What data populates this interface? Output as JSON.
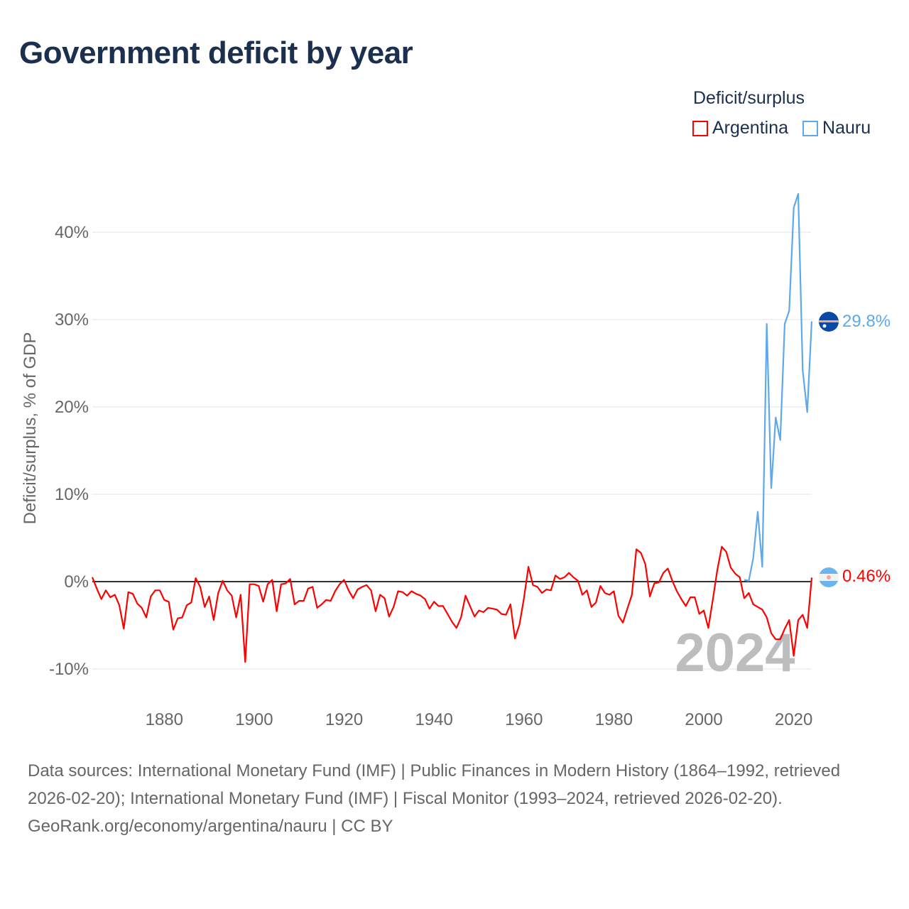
{
  "title": "Government deficit by year",
  "legend": {
    "title": "Deficit/surplus",
    "items": [
      {
        "label": "Argentina",
        "color": "#ff0000"
      },
      {
        "label": "Nauru",
        "color": "#5ea8ec"
      }
    ]
  },
  "year_watermark": "2024",
  "end_labels": {
    "argentina": "0.46%",
    "nauru": "29.8%"
  },
  "footer": {
    "sources": "Data sources: International Monetary Fund (IMF) | Public Finances in Modern History (1864–1992, retrieved 2026-02-20); International Monetary Fund (IMF) | Fiscal Monitor (1993–2024, retrieved 2026-02-20).",
    "attribution": "GeoRank.org/economy/argentina/nauru | CC BY"
  },
  "chart_data": {
    "type": "line",
    "title": "Government deficit by year",
    "xlabel": "",
    "ylabel": "Deficit/surplus, % of GDP",
    "xlim": [
      1864,
      2024
    ],
    "ylim": [
      -12,
      46
    ],
    "x_ticks": [
      1880,
      1900,
      1920,
      1940,
      1960,
      1980,
      2000,
      2020
    ],
    "y_ticks": [
      -10,
      0,
      10,
      20,
      30,
      40
    ],
    "y_tick_labels": [
      "-10%",
      "0%",
      "10%",
      "20%",
      "30%",
      "40%"
    ],
    "grid": true,
    "legend_position": "top-right",
    "series": [
      {
        "name": "Argentina",
        "color": "#ff0000",
        "start_year": 1864,
        "values": [
          0.5,
          -0.8,
          -2.0,
          -1.0,
          -1.8,
          -1.5,
          -2.7,
          -5.4,
          -1.2,
          -1.4,
          -2.5,
          -3.0,
          -4.1,
          -1.7,
          -1.0,
          -1.0,
          -2.1,
          -2.3,
          -5.5,
          -4.2,
          -4.1,
          -2.7,
          -2.4,
          0.4,
          -0.6,
          -2.9,
          -1.7,
          -4.4,
          -1.3,
          0.1,
          -1.0,
          -1.6,
          -4.1,
          -1.5,
          -9.2,
          -0.3,
          -0.3,
          -0.5,
          -2.3,
          -0.3,
          0.2,
          -3.4,
          -0.3,
          -0.2,
          0.3,
          -2.6,
          -2.2,
          -2.2,
          -0.8,
          -0.6,
          -3.0,
          -2.6,
          -2.1,
          -2.2,
          -1.1,
          -0.3,
          0.2,
          -1.0,
          -1.9,
          -0.9,
          -0.6,
          -0.4,
          -1.0,
          -3.4,
          -1.5,
          -1.9,
          -4.0,
          -2.9,
          -1.1,
          -1.2,
          -1.6,
          -1.1,
          -1.4,
          -1.6,
          -2.0,
          -3.1,
          -2.3,
          -2.8,
          -2.8,
          -3.7,
          -4.6,
          -5.3,
          -4.1,
          -1.6,
          -2.8,
          -4.0,
          -3.3,
          -3.5,
          -3.0,
          -3.1,
          -3.2,
          -3.7,
          -3.8,
          -2.6,
          -6.5,
          -4.9,
          -1.9,
          1.7,
          -0.4,
          -0.6,
          -1.3,
          -0.9,
          -1.0,
          0.7,
          0.3,
          0.5,
          1.0,
          0.5,
          0.1,
          -1.5,
          -1.0,
          -2.9,
          -2.4,
          -0.5,
          -1.3,
          -1.5,
          -1.1,
          -3.9,
          -4.7,
          -3.1,
          -1.5,
          3.7,
          3.3,
          2.0,
          -1.7,
          -0.2,
          -0.1,
          1.0,
          1.5,
          0.1,
          -1.1,
          -2.0,
          -2.8,
          -1.8,
          -1.8,
          -3.7,
          -3.3,
          -5.3,
          -2.1,
          1.3,
          4.0,
          3.4,
          1.6,
          0.9,
          0.5,
          -1.9,
          -1.3,
          -2.6,
          -2.9,
          -3.2,
          -4.1,
          -5.9,
          -6.6,
          -6.6,
          -5.4,
          -4.4,
          -8.5,
          -4.4,
          -3.8,
          -5.3,
          0.46
        ]
      },
      {
        "name": "Nauru",
        "color": "#5ea8ec",
        "start_year": 2009,
        "values": [
          0.2,
          0.1,
          2.7,
          8.0,
          1.7,
          29.5,
          10.7,
          18.8,
          16.2,
          29.5,
          31.0,
          42.8,
          44.4,
          24.2,
          19.4,
          29.8
        ]
      }
    ]
  }
}
